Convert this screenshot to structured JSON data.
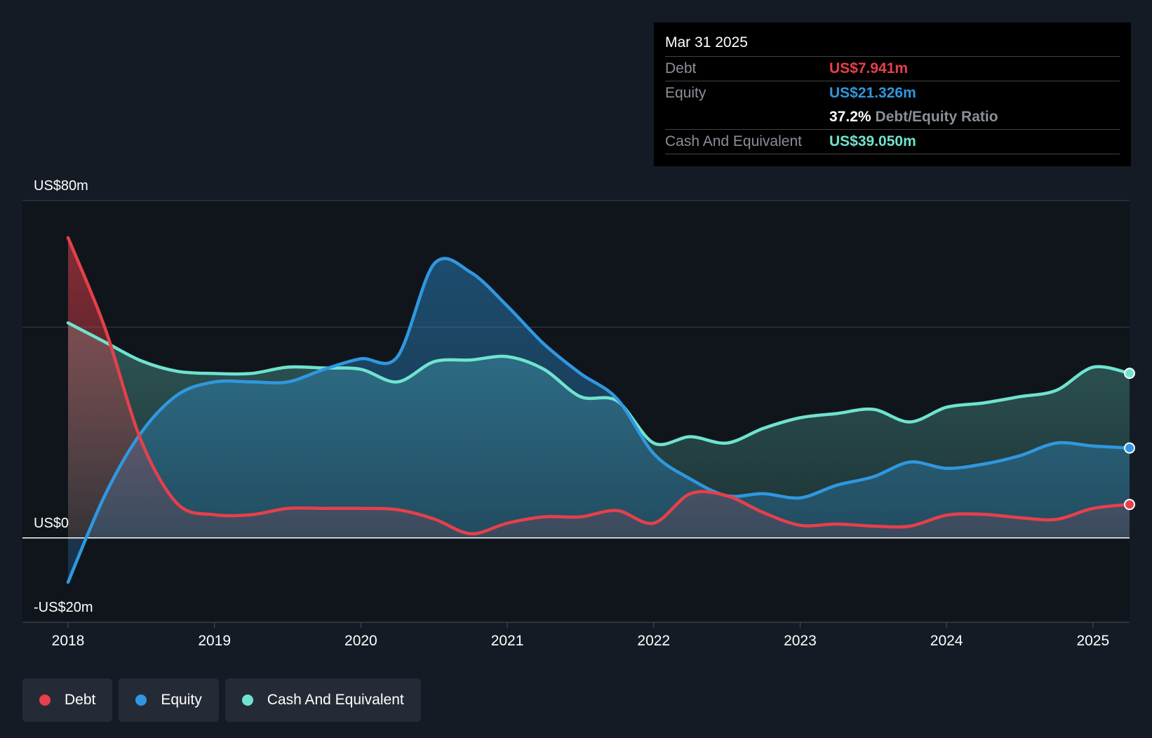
{
  "tooltip": {
    "date": "Mar 31 2025",
    "debt_label": "Debt",
    "debt_value": "US$7.941m",
    "equity_label": "Equity",
    "equity_value": "US$21.326m",
    "ratio_value": "37.2%",
    "ratio_label": "Debt/Equity Ratio",
    "cash_label": "Cash And Equivalent",
    "cash_value": "US$39.050m"
  },
  "legend": [
    {
      "label": "Debt",
      "color": "#e5404b"
    },
    {
      "label": "Equity",
      "color": "#2f98e0"
    },
    {
      "label": "Cash And Equivalent",
      "color": "#6fe3cf"
    }
  ],
  "chart_data": {
    "type": "area",
    "title": "",
    "xlabel": "",
    "ylabel": "",
    "ylim": [
      -20,
      80
    ],
    "y_tick_labels": [
      {
        "value": 80,
        "label": "US$80m"
      },
      {
        "value": 0,
        "label": "US$0"
      },
      {
        "value": -20,
        "label": "-US$20m"
      }
    ],
    "gridlines": [
      80,
      50,
      0,
      -20
    ],
    "xlim": [
      2018,
      2025.25
    ],
    "x_ticks": [
      {
        "value": 2018,
        "label": "2018"
      },
      {
        "value": 2019,
        "label": "2019"
      },
      {
        "value": 2020,
        "label": "2020"
      },
      {
        "value": 2021,
        "label": "2021"
      },
      {
        "value": 2022,
        "label": "2022"
      },
      {
        "value": 2023,
        "label": "2023"
      },
      {
        "value": 2024,
        "label": "2024"
      },
      {
        "value": 2025,
        "label": "2025"
      }
    ],
    "series": [
      {
        "name": "Debt",
        "color": "#e5404b",
        "points": [
          [
            2018.0,
            71.2
          ],
          [
            2018.25,
            50
          ],
          [
            2018.5,
            23
          ],
          [
            2018.75,
            8
          ],
          [
            2019.0,
            5.5
          ],
          [
            2019.25,
            5.5
          ],
          [
            2019.5,
            7
          ],
          [
            2019.75,
            7
          ],
          [
            2020.0,
            7
          ],
          [
            2020.25,
            6.7
          ],
          [
            2020.5,
            4.5
          ],
          [
            2020.75,
            1
          ],
          [
            2021.0,
            3.5
          ],
          [
            2021.25,
            5
          ],
          [
            2021.5,
            5
          ],
          [
            2021.75,
            6.5
          ],
          [
            2022.0,
            3.5
          ],
          [
            2022.25,
            10.5
          ],
          [
            2022.5,
            10
          ],
          [
            2022.75,
            6
          ],
          [
            2023.0,
            3
          ],
          [
            2023.25,
            3.3
          ],
          [
            2023.5,
            2.8
          ],
          [
            2023.75,
            2.8
          ],
          [
            2024.0,
            5.4
          ],
          [
            2024.25,
            5.6
          ],
          [
            2024.5,
            4.8
          ],
          [
            2024.75,
            4.4
          ],
          [
            2025.0,
            7
          ],
          [
            2025.25,
            7.941
          ]
        ]
      },
      {
        "name": "Equity",
        "color": "#2f98e0",
        "points": [
          [
            2018.0,
            -10.5
          ],
          [
            2018.25,
            10
          ],
          [
            2018.5,
            25
          ],
          [
            2018.75,
            34
          ],
          [
            2019.0,
            37
          ],
          [
            2019.25,
            37
          ],
          [
            2019.5,
            37
          ],
          [
            2019.75,
            40
          ],
          [
            2020.0,
            42.5
          ],
          [
            2020.25,
            43
          ],
          [
            2020.5,
            65
          ],
          [
            2020.75,
            63
          ],
          [
            2021.0,
            55
          ],
          [
            2021.25,
            46
          ],
          [
            2021.5,
            39
          ],
          [
            2021.75,
            33
          ],
          [
            2022.0,
            20
          ],
          [
            2022.25,
            14
          ],
          [
            2022.5,
            10
          ],
          [
            2022.75,
            10.5
          ],
          [
            2023.0,
            9.5
          ],
          [
            2023.25,
            12.5
          ],
          [
            2023.5,
            14.5
          ],
          [
            2023.75,
            18
          ],
          [
            2024.0,
            16.5
          ],
          [
            2024.25,
            17.5
          ],
          [
            2024.5,
            19.5
          ],
          [
            2024.75,
            22.5
          ],
          [
            2025.0,
            21.8
          ],
          [
            2025.25,
            21.326
          ]
        ]
      },
      {
        "name": "Cash And Equivalent",
        "color": "#6fe3cf",
        "points": [
          [
            2018.0,
            51
          ],
          [
            2018.25,
            46.5
          ],
          [
            2018.5,
            42
          ],
          [
            2018.75,
            39.5
          ],
          [
            2019.0,
            39
          ],
          [
            2019.25,
            39
          ],
          [
            2019.5,
            40.5
          ],
          [
            2019.75,
            40.3
          ],
          [
            2020.0,
            40
          ],
          [
            2020.25,
            37
          ],
          [
            2020.5,
            41.8
          ],
          [
            2020.75,
            42.2
          ],
          [
            2021.0,
            43
          ],
          [
            2021.25,
            40
          ],
          [
            2021.5,
            33.5
          ],
          [
            2021.75,
            32.5
          ],
          [
            2022.0,
            22.5
          ],
          [
            2022.25,
            24
          ],
          [
            2022.5,
            22.5
          ],
          [
            2022.75,
            26
          ],
          [
            2023.0,
            28.5
          ],
          [
            2023.25,
            29.5
          ],
          [
            2023.5,
            30.5
          ],
          [
            2023.75,
            27.5
          ],
          [
            2024.0,
            31
          ],
          [
            2024.25,
            32
          ],
          [
            2024.5,
            33.5
          ],
          [
            2024.75,
            35
          ],
          [
            2025.0,
            40.5
          ],
          [
            2025.25,
            39.05
          ]
        ]
      }
    ]
  }
}
